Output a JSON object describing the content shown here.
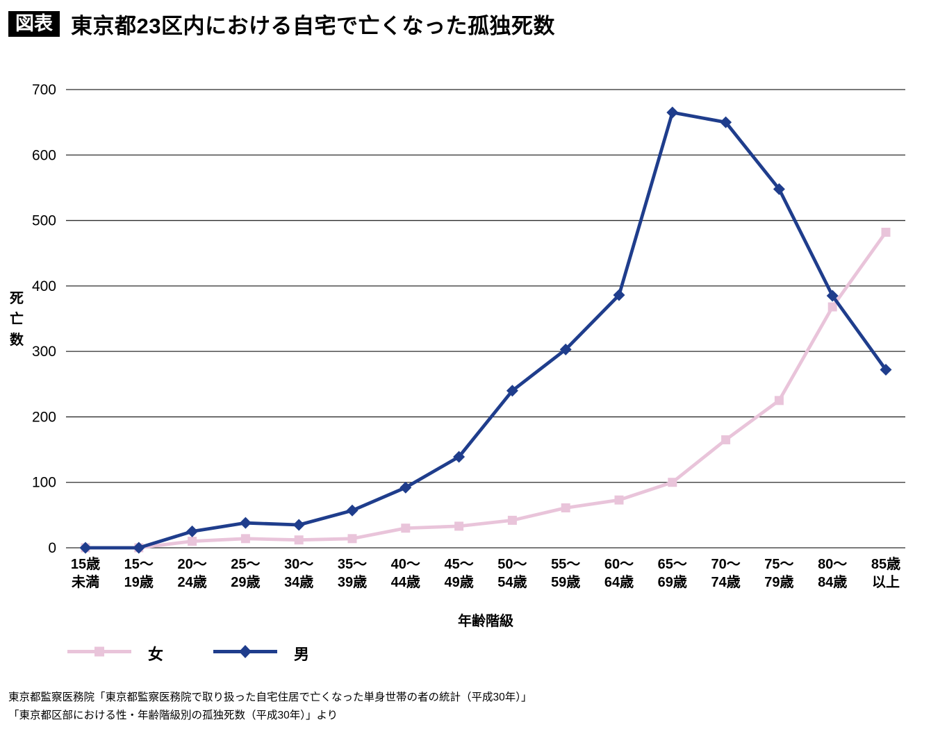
{
  "header": {
    "badge": "図表",
    "title": "東京都23区内における自宅で亡くなった孤独死数"
  },
  "chart_data": {
    "type": "line",
    "categories": [
      [
        "15歳",
        "未満"
      ],
      [
        "15〜",
        "19歳"
      ],
      [
        "20〜",
        "24歳"
      ],
      [
        "25〜",
        "29歳"
      ],
      [
        "30〜",
        "34歳"
      ],
      [
        "35〜",
        "39歳"
      ],
      [
        "40〜",
        "44歳"
      ],
      [
        "45〜",
        "49歳"
      ],
      [
        "50〜",
        "54歳"
      ],
      [
        "55〜",
        "59歳"
      ],
      [
        "60〜",
        "64歳"
      ],
      [
        "65〜",
        "69歳"
      ],
      [
        "70〜",
        "74歳"
      ],
      [
        "75〜",
        "79歳"
      ],
      [
        "80〜",
        "84歳"
      ],
      [
        "85歳",
        "以上"
      ]
    ],
    "series": [
      {
        "name": "女",
        "color": "#e9c4da",
        "marker": "square",
        "values": [
          0,
          0,
          10,
          14,
          12,
          14,
          30,
          33,
          42,
          61,
          73,
          100,
          165,
          225,
          368,
          482
        ]
      },
      {
        "name": "男",
        "color": "#1f3d8c",
        "marker": "diamond",
        "values": [
          0,
          0,
          25,
          38,
          35,
          57,
          92,
          139,
          240,
          303,
          386,
          665,
          650,
          548,
          385,
          272
        ]
      }
    ],
    "ylim": [
      0,
      700
    ],
    "ytick_step": 100,
    "xlabel": "年齢階級",
    "ylabel": "死亡数",
    "grid": true,
    "legend_position": "bottom-left"
  },
  "footer": {
    "line1": "東京都監察医務院「東京都監察医務院で取り扱った自宅住居で亡くなった単身世帯の者の統計（平成30年）」",
    "line2": "「東京都区部における性・年齢階級別の孤独死数（平成30年）」より"
  }
}
